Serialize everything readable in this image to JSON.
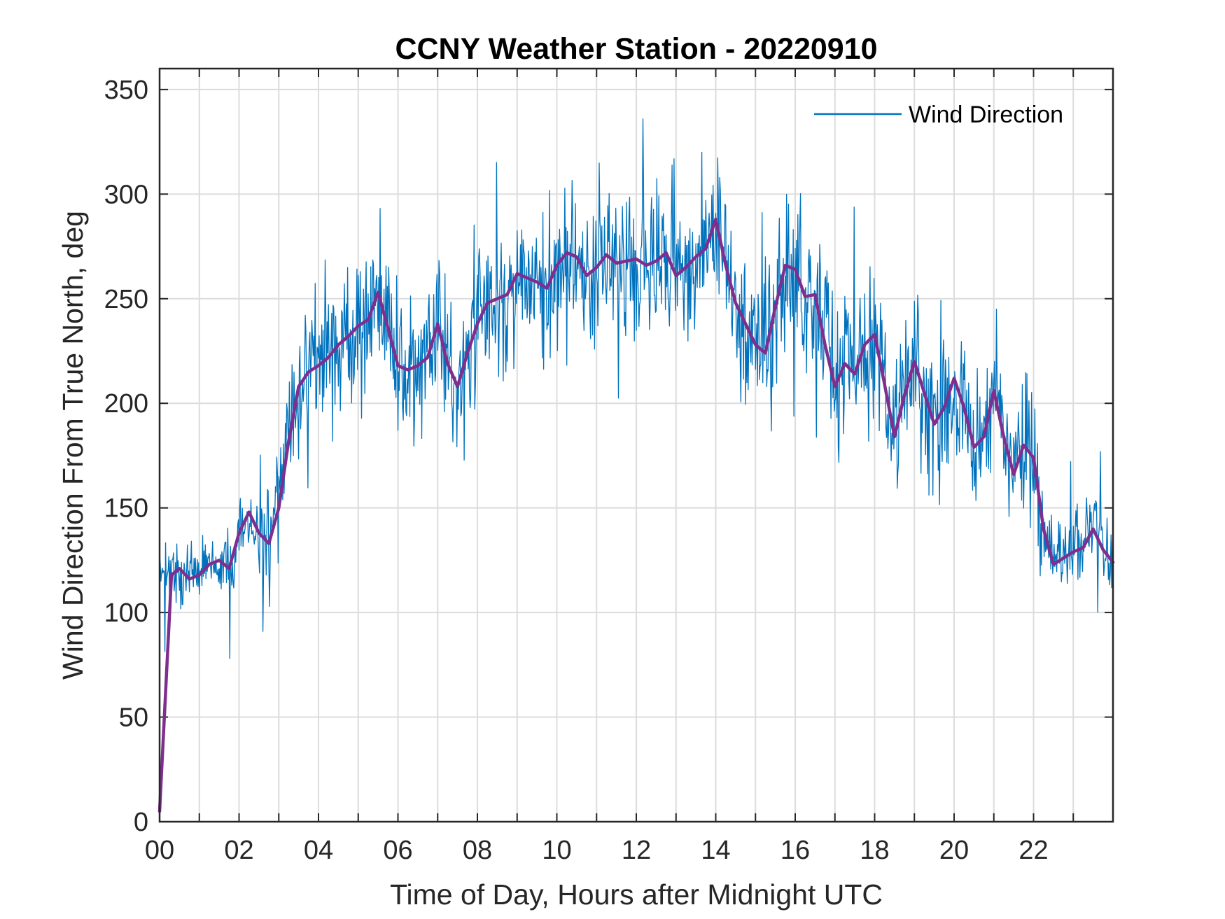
{
  "chart_data": {
    "type": "line",
    "title": "CCNY Weather Station - 20220910",
    "xlabel": "Time of Day, Hours after Midnight UTC",
    "ylabel": "Wind Direction From True North, deg",
    "xlim": [
      0,
      24
    ],
    "ylim": [
      0,
      360
    ],
    "xticks": [
      0,
      2,
      4,
      6,
      8,
      10,
      12,
      14,
      16,
      18,
      20,
      22
    ],
    "xtick_labels": [
      "00",
      "02",
      "04",
      "06",
      "08",
      "10",
      "12",
      "14",
      "16",
      "18",
      "20",
      "22"
    ],
    "yticks": [
      0,
      50,
      100,
      150,
      200,
      250,
      300,
      350
    ],
    "ytick_labels": [
      "0",
      "50",
      "100",
      "150",
      "200",
      "250",
      "300",
      "350"
    ],
    "grid": true,
    "legend_position": "top-right",
    "series": [
      {
        "name": "Wind Direction",
        "color": "#0072BD",
        "in_legend": true,
        "style": "noisy",
        "x": [
          0,
          0.25,
          0.5,
          0.75,
          1,
          1.25,
          1.5,
          1.75,
          2,
          2.25,
          2.5,
          2.75,
          3,
          3.25,
          3.5,
          3.75,
          4,
          4.25,
          4.5,
          4.75,
          5,
          5.25,
          5.5,
          5.75,
          6,
          6.25,
          6.5,
          6.75,
          7,
          7.25,
          7.5,
          7.75,
          8,
          8.25,
          8.5,
          8.75,
          9,
          9.25,
          9.5,
          9.75,
          10,
          10.25,
          10.5,
          10.75,
          11,
          11.25,
          11.5,
          11.75,
          12,
          12.25,
          12.5,
          12.75,
          13,
          13.25,
          13.5,
          13.75,
          14,
          14.25,
          14.5,
          14.75,
          15,
          15.25,
          15.5,
          15.75,
          16,
          16.25,
          16.5,
          16.75,
          17,
          17.25,
          17.5,
          17.75,
          18,
          18.25,
          18.5,
          18.75,
          19,
          19.25,
          19.5,
          19.75,
          20,
          20.25,
          20.5,
          20.75,
          21,
          21.25,
          21.5,
          21.75,
          22,
          22.25,
          22.5,
          22.75,
          23,
          23.25,
          23.5,
          23.75,
          24
        ],
        "y": [
          120,
          121,
          118,
          116,
          120,
          124,
          125,
          122,
          135,
          148,
          138,
          135,
          150,
          180,
          205,
          215,
          220,
          222,
          228,
          232,
          238,
          242,
          250,
          235,
          218,
          216,
          218,
          222,
          238,
          220,
          208,
          225,
          238,
          248,
          250,
          252,
          262,
          260,
          258,
          256,
          265,
          272,
          270,
          262,
          265,
          270,
          268,
          268,
          270,
          266,
          268,
          272,
          262,
          265,
          270,
          275,
          285,
          265,
          248,
          240,
          228,
          225,
          245,
          262,
          265,
          252,
          250,
          230,
          210,
          218,
          215,
          228,
          232,
          210,
          185,
          205,
          220,
          205,
          190,
          198,
          210,
          198,
          180,
          185,
          205,
          185,
          165,
          180,
          175,
          140,
          125,
          125,
          130,
          132,
          140,
          130,
          125
        ],
        "spike_max": 337,
        "spike_min": 0
      },
      {
        "name": "Smoothed",
        "color": "#7E2F8E",
        "in_legend": false,
        "style": "smooth",
        "x": [
          0,
          0.3,
          0.5,
          0.75,
          1,
          1.25,
          1.5,
          1.75,
          2,
          2.25,
          2.5,
          2.75,
          3,
          3.25,
          3.5,
          3.75,
          4,
          4.25,
          4.5,
          4.75,
          5,
          5.25,
          5.5,
          5.75,
          6,
          6.25,
          6.5,
          6.75,
          7,
          7.25,
          7.5,
          7.75,
          8,
          8.25,
          8.5,
          8.75,
          9,
          9.25,
          9.5,
          9.75,
          10,
          10.25,
          10.5,
          10.75,
          11,
          11.25,
          11.5,
          11.75,
          12,
          12.25,
          12.5,
          12.75,
          13,
          13.25,
          13.5,
          13.75,
          14,
          14.25,
          14.5,
          14.75,
          15,
          15.25,
          15.5,
          15.75,
          16,
          16.25,
          16.5,
          16.75,
          17,
          17.25,
          17.5,
          17.75,
          18,
          18.25,
          18.5,
          18.75,
          19,
          19.25,
          19.5,
          19.75,
          20,
          20.25,
          20.5,
          20.75,
          21,
          21.25,
          21.5,
          21.75,
          22,
          22.25,
          22.5,
          22.75,
          23,
          23.25,
          23.5,
          23.75,
          24
        ],
        "y": [
          5,
          118,
          121,
          116,
          118,
          123,
          125,
          121,
          138,
          148,
          138,
          133,
          150,
          182,
          208,
          215,
          218,
          222,
          228,
          232,
          237,
          240,
          253,
          236,
          218,
          216,
          218,
          222,
          238,
          219,
          208,
          224,
          238,
          248,
          250,
          252,
          262,
          260,
          258,
          255,
          266,
          272,
          270,
          261,
          265,
          271,
          267,
          268,
          269,
          266,
          268,
          272,
          261,
          265,
          270,
          274,
          288,
          266,
          248,
          238,
          228,
          224,
          246,
          266,
          264,
          251,
          252,
          228,
          208,
          219,
          214,
          228,
          233,
          209,
          184,
          204,
          220,
          205,
          190,
          198,
          212,
          198,
          179,
          184,
          206,
          184,
          166,
          180,
          174,
          140,
          123,
          126,
          129,
          131,
          140,
          130,
          124
        ]
      }
    ]
  }
}
